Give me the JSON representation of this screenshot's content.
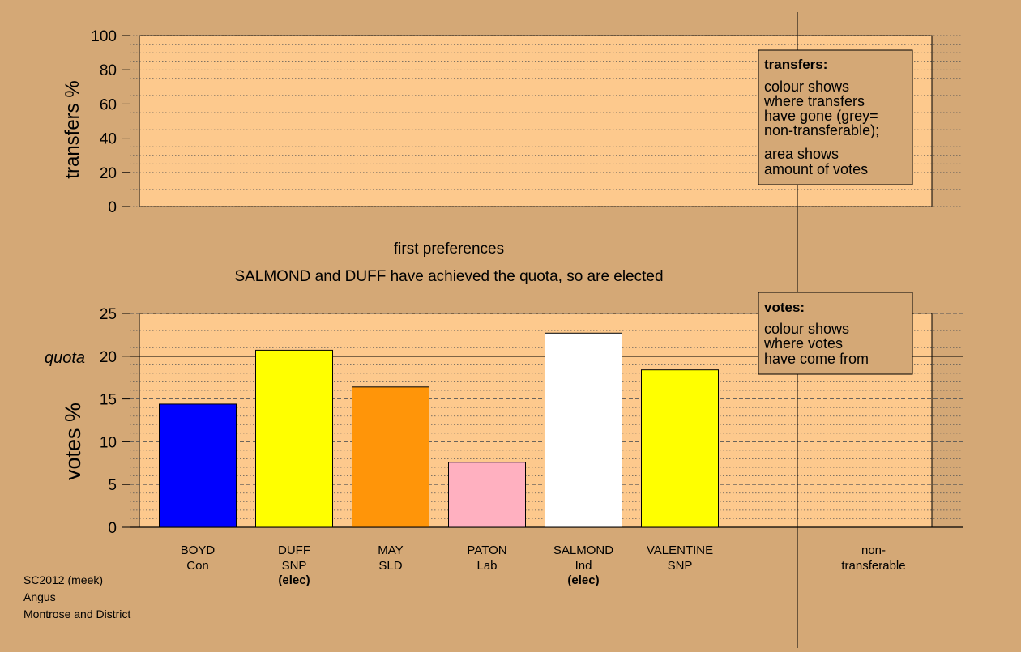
{
  "colors": {
    "background": "#d4a876",
    "panel": "#fdc98d",
    "grid": "#555555",
    "bar_con": "#0000ff",
    "bar_snp": "#ffff00",
    "bar_sld": "#ff9509",
    "bar_lab": "#ffb0c0",
    "bar_ind": "#ffffff"
  },
  "chart_data": [
    {
      "type": "bar",
      "name": "transfers-panel",
      "ylabel": "transfers %",
      "ylim": [
        0,
        100
      ],
      "yticks": [
        0,
        20,
        40,
        60,
        80,
        100
      ],
      "values": [],
      "legend": {
        "title": "transfers:",
        "line1": "colour shows",
        "line2": "where transfers",
        "line3": "have gone (grey=",
        "line4": "non-transferable);",
        "line5": "area shows",
        "line6": "amount of votes",
        "placement": "top-right"
      }
    },
    {
      "type": "bar",
      "name": "votes-panel",
      "title": "first preferences",
      "subtitle": "SALMOND and DUFF have achieved the quota, so are elected",
      "ylabel": "votes %",
      "ylim": [
        0,
        25
      ],
      "yticks": [
        0,
        5,
        10,
        15,
        20,
        25
      ],
      "quota": 20,
      "quota_label": "quota",
      "categories": [
        {
          "name": "BOYD",
          "party": "Con",
          "status": "",
          "value": 14.4,
          "color": "#0000ff"
        },
        {
          "name": "DUFF",
          "party": "SNP",
          "status": "(elec)",
          "value": 20.7,
          "color": "#ffff00"
        },
        {
          "name": "MAY",
          "party": "SLD",
          "status": "",
          "value": 16.4,
          "color": "#ff9509"
        },
        {
          "name": "PATON",
          "party": "Lab",
          "status": "",
          "value": 7.6,
          "color": "#ffb0c0"
        },
        {
          "name": "SALMOND",
          "party": "Ind",
          "status": "(elec)",
          "value": 22.7,
          "color": "#ffffff"
        },
        {
          "name": "VALENTINE",
          "party": "SNP",
          "status": "",
          "value": 18.4,
          "color": "#ffff00"
        }
      ],
      "nontransferable_label_1": "non-",
      "nontransferable_label_2": "transferable",
      "legend": {
        "title": "votes:",
        "line1": "colour shows",
        "line2": "where votes",
        "line3": "have come from",
        "placement": "top-right"
      }
    }
  ],
  "footer": {
    "line1": "SC2012 (meek)",
    "line2": "Angus",
    "line3": "Montrose and District"
  }
}
